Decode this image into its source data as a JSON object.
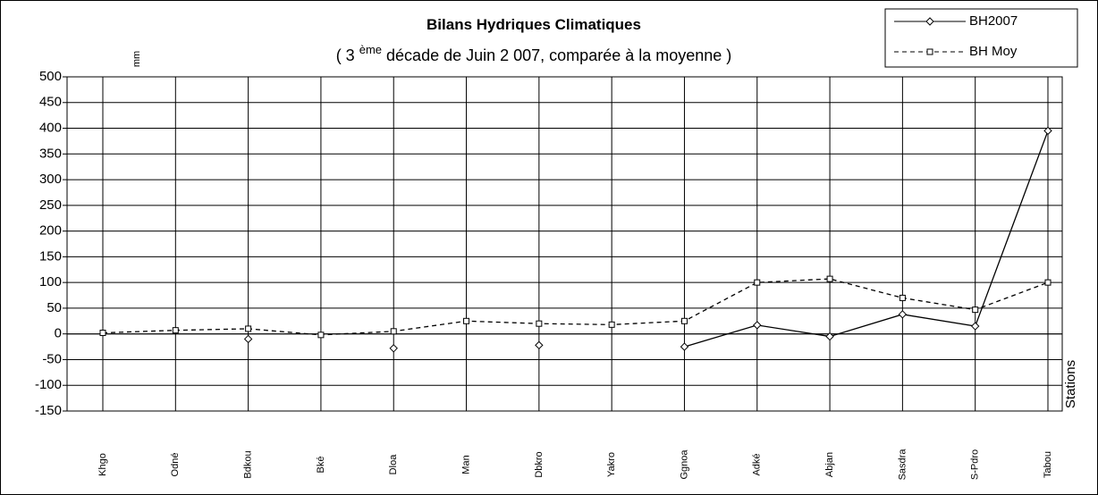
{
  "chart_data": {
    "type": "line",
    "title": "Bilans Hydriques Climatiques",
    "subtitle": {
      "before": "( 3",
      "superscript": "ème",
      "after": "décade de Juin 2 007, comparée à la moyenne )"
    },
    "y_label": "mm",
    "x_label": "Stations",
    "categories": [
      "Khgo",
      "Odné",
      "Bdkou",
      "Bké",
      "Dloa",
      "Man",
      "Dbkro",
      "Yakro",
      "Ggnoa",
      "Adké",
      "Abjan",
      "Sasdra",
      "S-Pdro",
      "Tabou"
    ],
    "series": [
      {
        "name": "BH2007",
        "color": "#000000",
        "dash": "solid",
        "marker": "diamond",
        "values": [
          null,
          null,
          -10,
          null,
          -28,
          null,
          -22,
          null,
          -25,
          17,
          -5,
          38,
          15,
          395
        ]
      },
      {
        "name": "BH Moy",
        "color": "#000000",
        "dash": "dashed",
        "marker": "square",
        "values": [
          2,
          7,
          10,
          -2,
          5,
          25,
          20,
          18,
          25,
          100,
          107,
          70,
          47,
          100
        ]
      }
    ],
    "ylim": [
      -150,
      500
    ],
    "yticks": [
      -150,
      -100,
      -50,
      0,
      50,
      100,
      150,
      200,
      250,
      300,
      350,
      400,
      450,
      500
    ],
    "grid": true,
    "legend": "top-right"
  }
}
